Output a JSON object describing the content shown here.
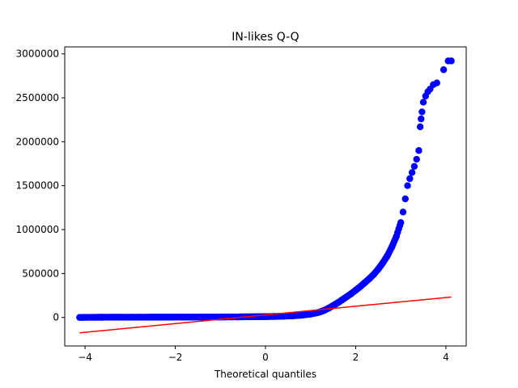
{
  "chart_data": {
    "type": "scatter",
    "title": "IN-likes Q-Q",
    "xlabel": "Theoretical quantiles",
    "ylabel": "",
    "xlim": [
      -4.45,
      4.45
    ],
    "ylim": [
      -325000,
      3080000
    ],
    "grid": false,
    "x_ticks": [
      -4,
      -2,
      0,
      2,
      4
    ],
    "x_tick_labels": [
      "−4",
      "−2",
      "0",
      "2",
      "4"
    ],
    "y_ticks": [
      0,
      500000,
      1000000,
      1500000,
      2000000,
      2500000,
      3000000
    ],
    "y_tick_labels": [
      "0",
      "500000",
      "1000000",
      "1500000",
      "2000000",
      "2500000",
      "3000000"
    ],
    "series": [
      {
        "kind": "points",
        "color": "#0000ff",
        "x": [
          -4.12,
          -3.95,
          -3.8,
          -3.6,
          -3.4,
          -3.2,
          -3.0,
          -2.8,
          -2.6,
          -2.4,
          -2.2,
          -2.0,
          -1.8,
          -1.6,
          -1.4,
          -1.2,
          -1.0,
          -0.8,
          -0.6,
          -0.4,
          -0.2,
          0.0,
          0.2,
          0.4,
          0.6,
          0.8,
          1.0,
          1.1,
          1.2,
          1.3,
          1.4,
          1.5,
          1.6,
          1.7,
          1.8,
          1.9,
          2.0,
          2.1,
          2.2,
          2.3,
          2.4,
          2.5,
          2.6,
          2.7,
          2.8,
          2.9,
          3.0,
          3.05,
          3.1,
          3.15,
          3.2,
          3.25,
          3.3,
          3.35,
          3.4,
          3.43,
          3.45,
          3.47,
          3.5,
          3.55,
          3.6,
          3.65,
          3.72,
          3.8,
          3.95,
          4.05,
          4.12
        ],
        "y": [
          0,
          1000,
          1500,
          1800,
          2000,
          2200,
          2400,
          2500,
          2700,
          2900,
          3000,
          3200,
          3500,
          3800,
          4000,
          4500,
          5000,
          5500,
          6000,
          7000,
          8000,
          9000,
          11000,
          14000,
          18000,
          25000,
          38000,
          48000,
          60000,
          80000,
          105000,
          135000,
          165000,
          200000,
          235000,
          270000,
          310000,
          350000,
          395000,
          440000,
          490000,
          550000,
          620000,
          700000,
          800000,
          920000,
          1080000,
          1200000,
          1350000,
          1500000,
          1580000,
          1650000,
          1720000,
          1800000,
          1900000,
          2170000,
          2260000,
          2340000,
          2450000,
          2520000,
          2570000,
          2600000,
          2650000,
          2670000,
          2820000,
          2920000,
          2920000
        ]
      },
      {
        "kind": "line",
        "color": "#ff0000",
        "x": [
          -4.12,
          4.12
        ],
        "y": [
          -175000,
          232000
        ]
      }
    ]
  }
}
